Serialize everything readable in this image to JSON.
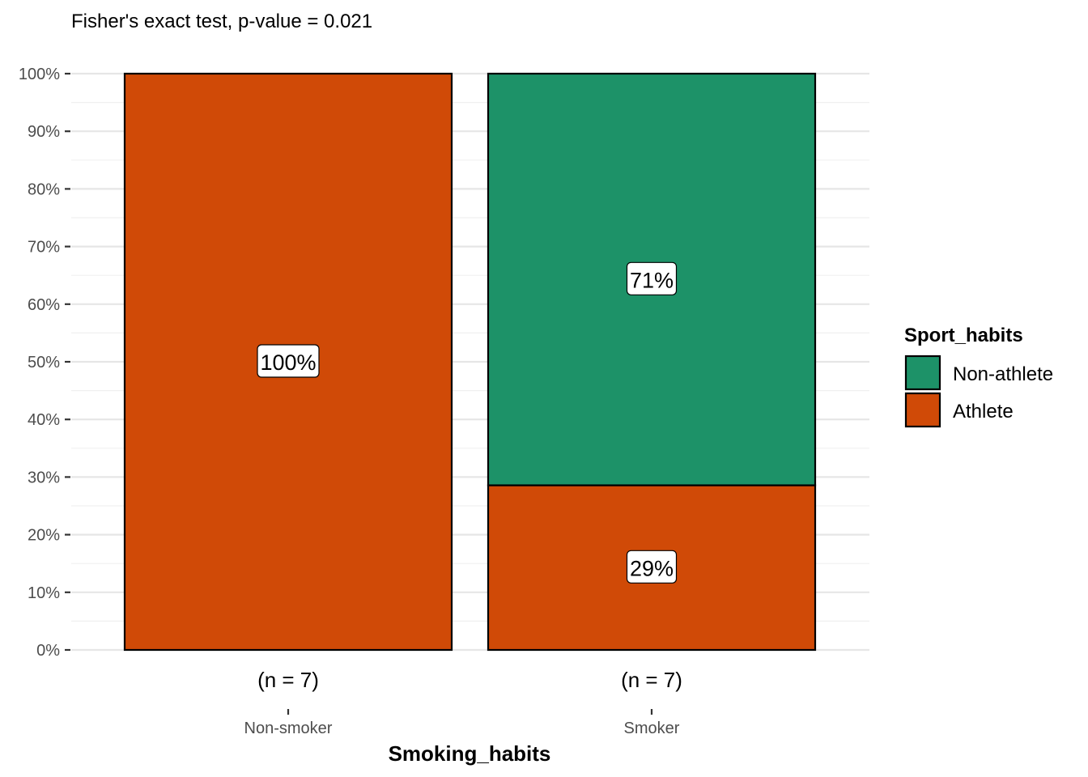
{
  "chart_data": {
    "type": "bar",
    "stacked": true,
    "percent": true,
    "subtitle": "Fisher's exact test, p-value = 0.021",
    "xlabel": "Smoking_habits",
    "ylabel": "",
    "ylim": [
      0,
      100
    ],
    "y_ticks": [
      "0%",
      "10%",
      "20%",
      "30%",
      "40%",
      "50%",
      "60%",
      "70%",
      "80%",
      "90%",
      "100%"
    ],
    "categories": [
      "Non-smoker",
      "Smoker"
    ],
    "counts": [
      "(n = 7)",
      "(n = 7)"
    ],
    "series": [
      {
        "name": "Athlete",
        "color": "#D04A07",
        "values": [
          100,
          28.57
        ],
        "labels": [
          "100%",
          "29%"
        ]
      },
      {
        "name": "Non-athlete",
        "color": "#1D9268",
        "values": [
          0,
          71.43
        ],
        "labels": [
          "",
          "71%"
        ]
      }
    ],
    "legend": {
      "title": "Sport_habits",
      "position": "right",
      "items": [
        {
          "label": "Non-athlete",
          "color": "#1D9268"
        },
        {
          "label": "Athlete",
          "color": "#D04A07"
        }
      ]
    },
    "grid": true
  }
}
